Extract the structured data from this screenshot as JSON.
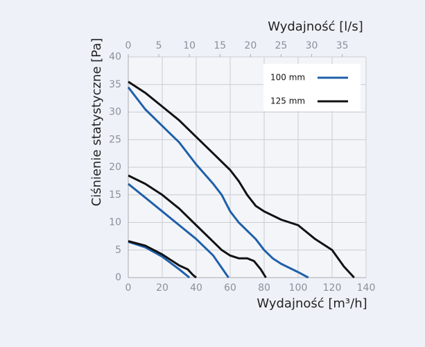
{
  "chart_data": {
    "type": "line",
    "x_label": "Wydajność [m³/h]",
    "x2_label": "Wydajność [l/s]",
    "y_label": "Ciśnienie statystyczne [Pa]",
    "xlim": [
      0,
      140
    ],
    "xticks": [
      0,
      20,
      40,
      60,
      80,
      100,
      120,
      140
    ],
    "x2lim": [
      0,
      38.9
    ],
    "x2ticks": [
      0,
      5,
      10,
      15,
      20,
      25,
      30,
      35
    ],
    "ylim": [
      0,
      40
    ],
    "yticks": [
      0,
      5,
      10,
      15,
      20,
      25,
      30,
      35,
      40
    ],
    "grid": true,
    "legend": "top-right",
    "series": [
      {
        "name": "100 mm",
        "color": "#1f5fa8",
        "curves": [
          {
            "x": [
              0,
              10,
              20,
              30,
              40,
              50,
              55,
              60,
              65,
              70,
              75,
              80,
              85,
              90,
              100,
              106
            ],
            "y": [
              34.5,
              30.5,
              27.5,
              24.5,
              20.5,
              17,
              15,
              12,
              10,
              8.5,
              7,
              5,
              3.5,
              2.5,
              1,
              0
            ]
          },
          {
            "x": [
              0,
              10,
              20,
              30,
              40,
              50,
              59
            ],
            "y": [
              17,
              14.5,
              12,
              9.5,
              7,
              4,
              0
            ]
          },
          {
            "x": [
              0,
              10,
              20,
              30,
              36
            ],
            "y": [
              6.5,
              5.5,
              3.8,
              1.5,
              0
            ]
          }
        ]
      },
      {
        "name": "125 mm",
        "color": "#111111",
        "curves": [
          {
            "x": [
              0,
              10,
              20,
              30,
              40,
              50,
              60,
              65,
              70,
              75,
              80,
              90,
              100,
              110,
              120,
              127,
              133
            ],
            "y": [
              35.5,
              33.5,
              31,
              28.5,
              25.5,
              22.5,
              19.5,
              17.5,
              15,
              13,
              12,
              10.5,
              9.5,
              7,
              5,
              2,
              0
            ]
          },
          {
            "x": [
              0,
              10,
              20,
              30,
              40,
              50,
              55,
              60,
              65,
              70,
              74,
              78,
              81
            ],
            "y": [
              18.5,
              17,
              15,
              12.5,
              9.5,
              6.5,
              5,
              4,
              3.5,
              3.5,
              3,
              1.5,
              0
            ]
          },
          {
            "x": [
              0,
              10,
              20,
              30,
              35,
              38,
              40
            ],
            "y": [
              6.6,
              5.8,
              4.2,
              2.2,
              1.5,
              0.5,
              0
            ]
          }
        ]
      }
    ]
  }
}
